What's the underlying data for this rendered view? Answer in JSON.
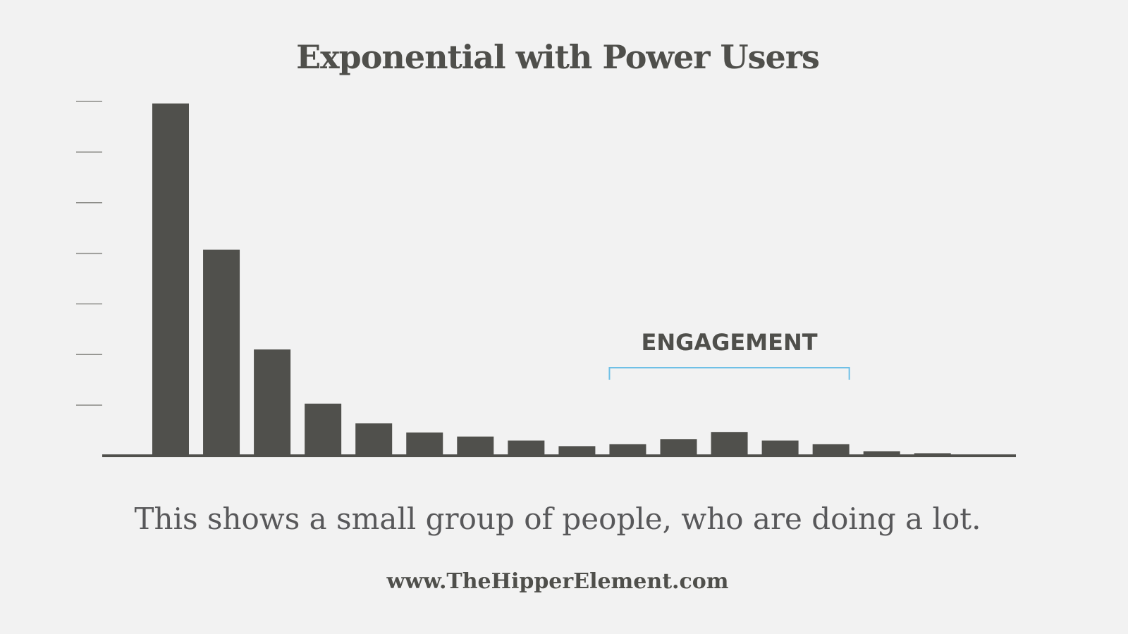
{
  "chart_data": {
    "type": "bar",
    "title": "Exponential with Power Users",
    "xlabel": "",
    "ylabel": "",
    "ylim": [
      0,
      7
    ],
    "yticks": [
      1,
      2,
      3,
      4,
      5,
      6,
      7
    ],
    "ytick_labels": [],
    "categories": [
      "",
      "",
      "",
      "",
      "",
      "",
      "",
      "",
      "",
      "",
      "",
      "",
      "",
      "",
      "",
      "",
      ""
    ],
    "values": [
      6.96,
      4.07,
      2.1,
      1.03,
      0.64,
      0.46,
      0.38,
      0.3,
      0.19,
      0.23,
      0.33,
      0.47,
      0.3,
      0.23,
      0.09,
      0.05,
      0.01
    ],
    "bar_color": "#50504c",
    "annotation": {
      "label": "ENGAGEMENT",
      "from_index": 9,
      "to_index": 13,
      "color": "#6fc0e6"
    },
    "grid": false,
    "legend": "none"
  },
  "caption": "This shows a small group of people, who are doing a lot.",
  "website": "www.TheHipperElement.com"
}
